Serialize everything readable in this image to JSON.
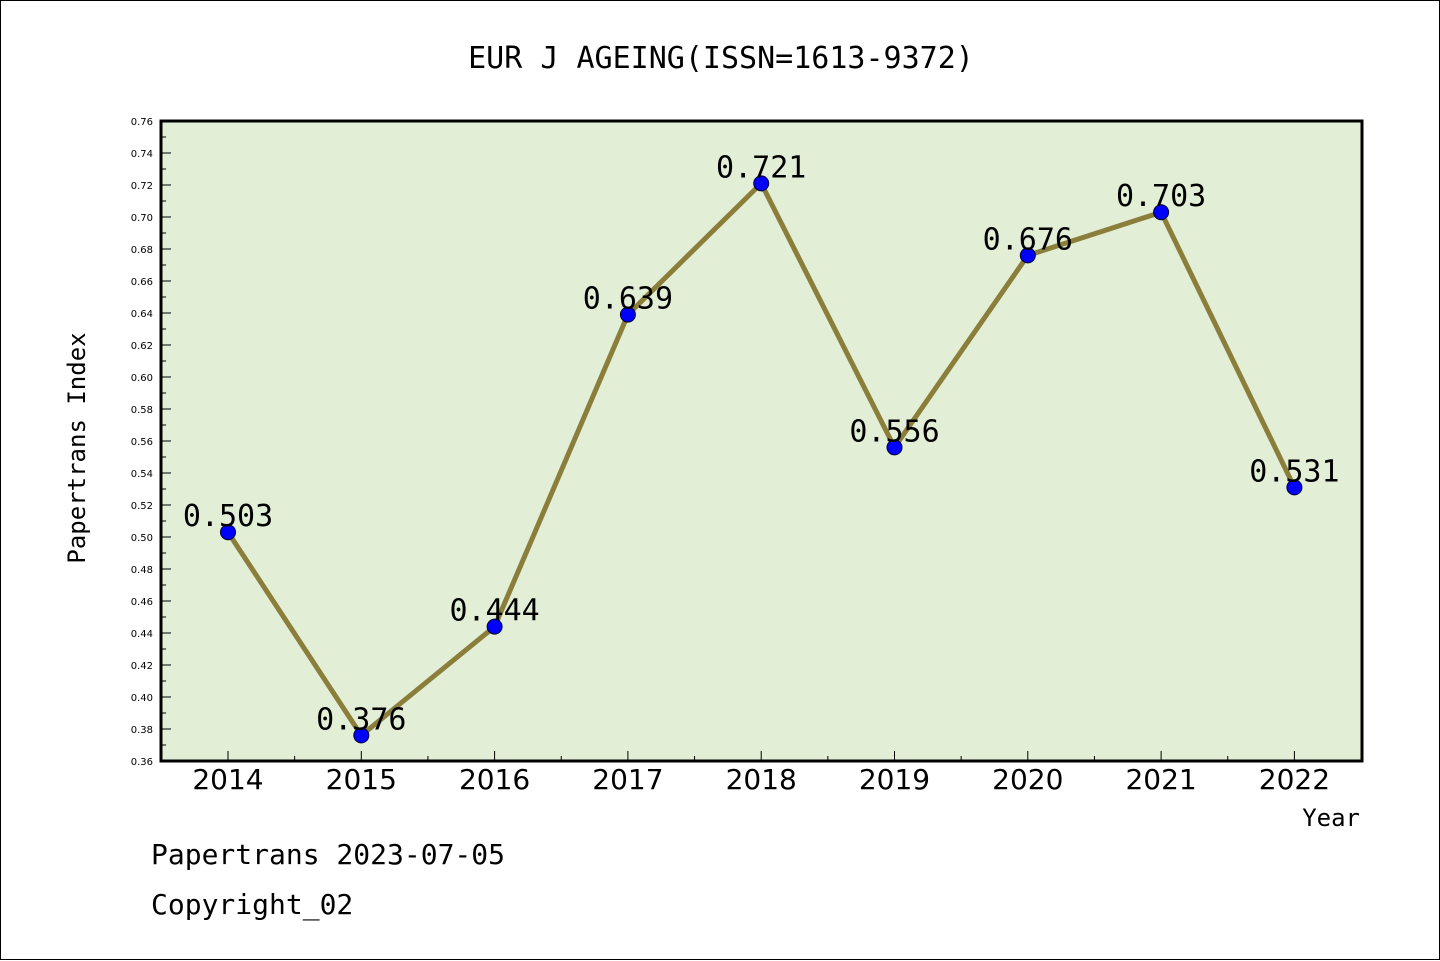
{
  "chart_data": {
    "type": "line",
    "title": "EUR J AGEING(ISSN=1613-9372)",
    "xlabel": "Year",
    "ylabel": "Papertrans Index",
    "categories": [
      "2014",
      "2015",
      "2016",
      "2017",
      "2018",
      "2019",
      "2020",
      "2021",
      "2022"
    ],
    "series": [
      {
        "values": [
          0.503,
          0.376,
          0.444,
          0.639,
          0.721,
          0.556,
          0.676,
          0.703,
          0.531
        ]
      }
    ],
    "data_labels": [
      "0.503",
      "0.376",
      "0.444",
      "0.639",
      "0.721",
      "0.556",
      "0.676",
      "0.703",
      "0.531"
    ],
    "ylim": [
      0.36,
      0.76
    ],
    "yticks": [
      "0.36",
      "0.38",
      "0.40",
      "0.42",
      "0.44",
      "0.46",
      "0.48",
      "0.50",
      "0.52",
      "0.54",
      "0.56",
      "0.58",
      "0.60",
      "0.62",
      "0.64",
      "0.66",
      "0.68",
      "0.70",
      "0.72",
      "0.74",
      "0.76"
    ],
    "colors": {
      "plot_background": "#e2efd6",
      "line": "#8b7d3a",
      "marker": "#0000ff"
    },
    "grid": false,
    "legend": "none"
  },
  "footer": {
    "line1": "Papertrans 2023-07-05",
    "line2": "Copyright_02"
  }
}
